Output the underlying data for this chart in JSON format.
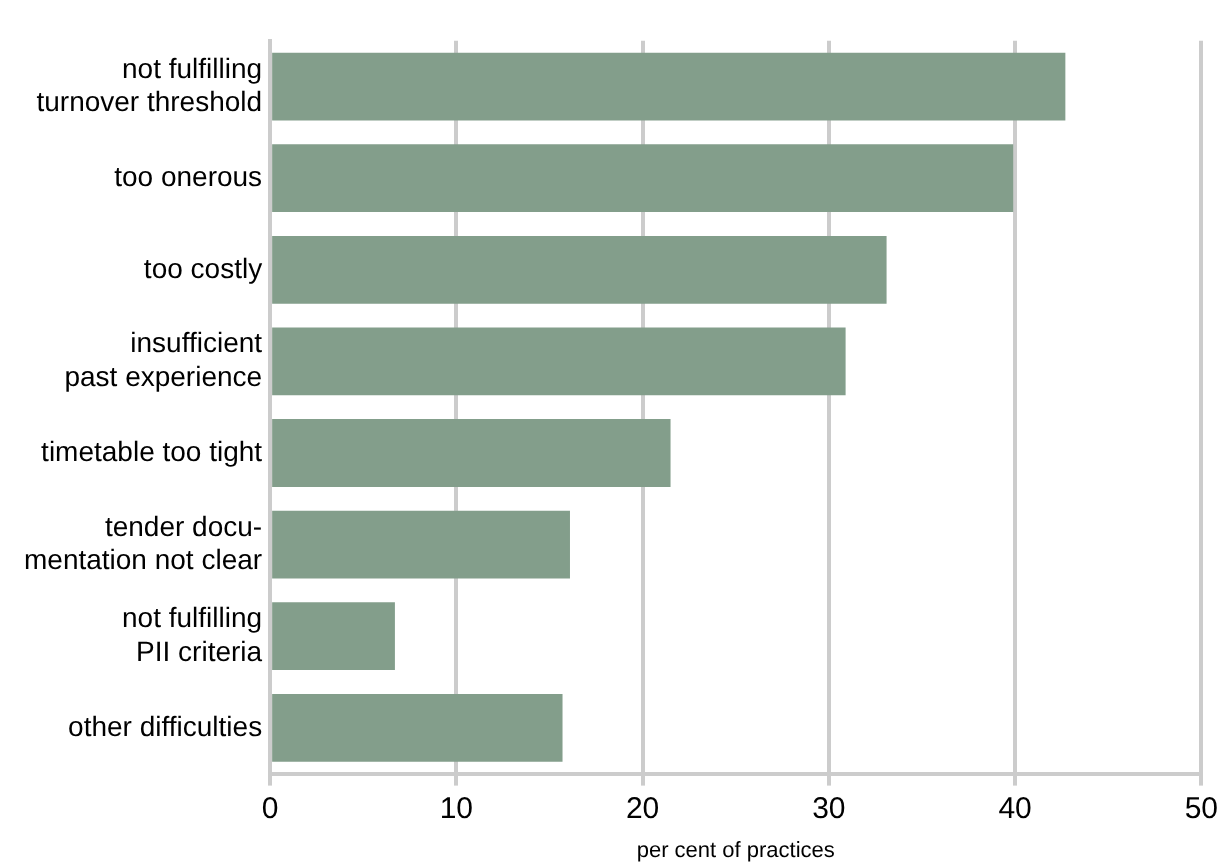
{
  "chart_data": {
    "type": "bar",
    "orientation": "horizontal",
    "xlabel": "per cent of practices",
    "categories": [
      "not fulfilling\nturnover threshold",
      "too onerous",
      "too costly",
      "insufficient\npast experience",
      "timetable too tight",
      "tender docu-\nmentation not clear",
      "not fulfilling\nPII criteria",
      "other difficulties"
    ],
    "values": [
      42.7,
      39.9,
      33.1,
      30.9,
      21.5,
      16.1,
      6.7,
      15.7
    ],
    "color": "#839e8b",
    "xlim": [
      0,
      50
    ],
    "xticks": [
      0,
      10,
      20,
      30,
      40,
      50
    ],
    "grid": "x",
    "legend": false
  }
}
